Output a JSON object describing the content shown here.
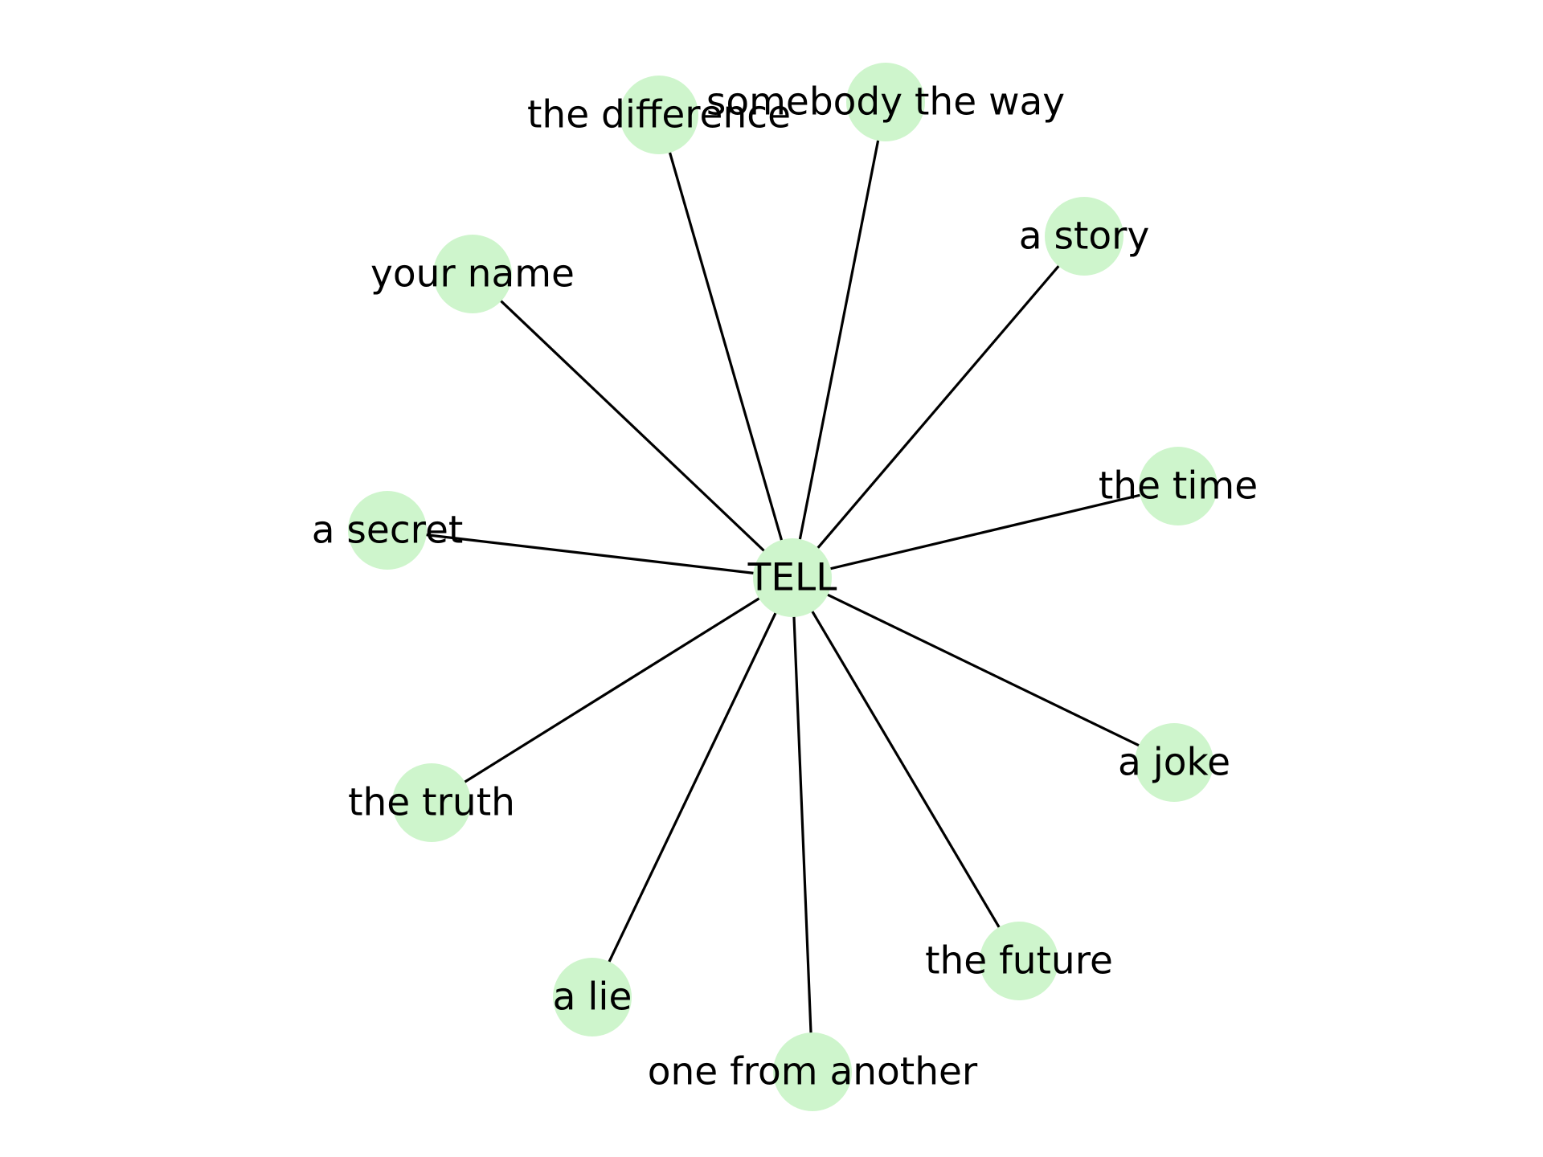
{
  "diagram": {
    "type": "star-network",
    "node_color": "#cef5cc",
    "edge_color": "#000000",
    "text_color": "#000000",
    "center": {
      "label": "TELL"
    },
    "leaves": [
      {
        "id": "somebody-the-way",
        "label": "somebody the way"
      },
      {
        "id": "the-difference",
        "label": "the difference"
      },
      {
        "id": "a-story",
        "label": "a story"
      },
      {
        "id": "your-name",
        "label": "your name"
      },
      {
        "id": "the-time",
        "label": "the time"
      },
      {
        "id": "a-secret",
        "label": "a secret"
      },
      {
        "id": "a-joke",
        "label": "a joke"
      },
      {
        "id": "the-truth",
        "label": "the truth"
      },
      {
        "id": "the-future",
        "label": "the future"
      },
      {
        "id": "a-lie",
        "label": "a lie"
      },
      {
        "id": "one-from-another",
        "label": "one from another"
      }
    ]
  }
}
